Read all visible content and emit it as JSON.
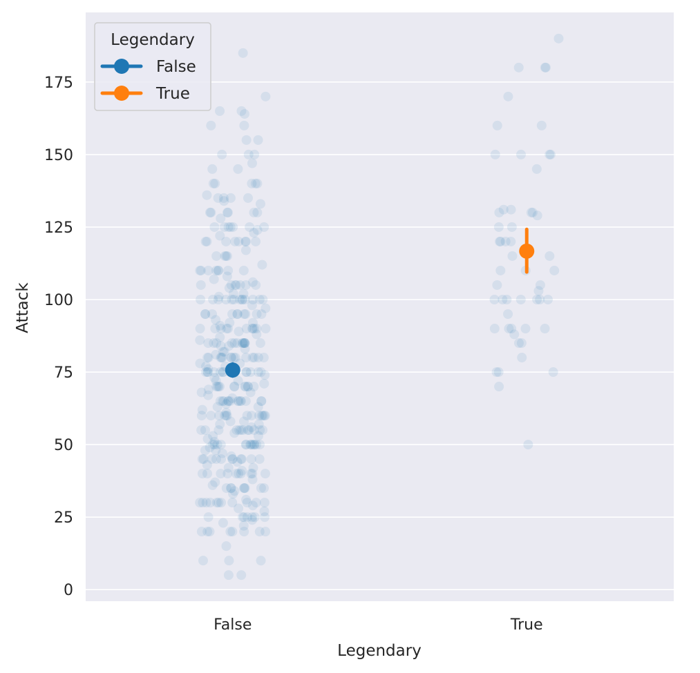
{
  "chart_data": {
    "type": "scatter",
    "title": "",
    "xlabel": "Legendary",
    "ylabel": "Attack",
    "categories": [
      "False",
      "True"
    ],
    "yticks": [
      0,
      25,
      50,
      75,
      100,
      125,
      150,
      175
    ],
    "ylim": [
      -4,
      199
    ],
    "grid": true,
    "legend": {
      "title": "Legendary",
      "placement": "top-left",
      "entries": [
        {
          "label": "False",
          "color": "#1f77b4"
        },
        {
          "label": "True",
          "color": "#ff7f0e"
        }
      ]
    },
    "strip_color": "#1f77b4",
    "series": [
      {
        "name": "False",
        "category": "False",
        "mean": 75.7,
        "ci": [
          73.6,
          77.8
        ],
        "color": "#1f77b4",
        "values": [
          185,
          165,
          165,
          170,
          164,
          160,
          160,
          155,
          155,
          150,
          150,
          150,
          147,
          145,
          145,
          140,
          140,
          140,
          140,
          140,
          136,
          135,
          135,
          135,
          135,
          134,
          133,
          130,
          130,
          130,
          130,
          130,
          130,
          128,
          125,
          125,
          125,
          125,
          125,
          125,
          125,
          124,
          123,
          122,
          120,
          120,
          120,
          120,
          120,
          120,
          120,
          120,
          117,
          115,
          115,
          115,
          115,
          112,
          110,
          110,
          110,
          110,
          110,
          110,
          110,
          110,
          108,
          107,
          106,
          105,
          105,
          105,
          105,
          105,
          105,
          105,
          104,
          102,
          102,
          101,
          100,
          100,
          100,
          100,
          100,
          100,
          100,
          100,
          100,
          100,
          100,
          100,
          100,
          98,
          97,
          95,
          95,
          95,
          95,
          95,
          95,
          95,
          95,
          95,
          95,
          93,
          92,
          92,
          91,
          90,
          90,
          90,
          90,
          90,
          90,
          90,
          90,
          90,
          90,
          90,
          89,
          88,
          87,
          86,
          85,
          85,
          85,
          85,
          85,
          85,
          85,
          85,
          85,
          85,
          85,
          85,
          85,
          84,
          84,
          83,
          82,
          82,
          81,
          80,
          80,
          80,
          80,
          80,
          80,
          80,
          80,
          80,
          80,
          80,
          80,
          80,
          80,
          78,
          78,
          77,
          77,
          76,
          75,
          75,
          75,
          75,
          75,
          75,
          75,
          75,
          75,
          75,
          75,
          75,
          75,
          74,
          73,
          72,
          72,
          71,
          70,
          70,
          70,
          70,
          70,
          70,
          70,
          70,
          70,
          70,
          70,
          69,
          68,
          68,
          67,
          66,
          65,
          65,
          65,
          65,
          65,
          65,
          65,
          65,
          65,
          65,
          65,
          65,
          65,
          64,
          63,
          63,
          62,
          61,
          60,
          60,
          60,
          60,
          60,
          60,
          60,
          60,
          60,
          60,
          60,
          60,
          60,
          58,
          58,
          57,
          57,
          56,
          55,
          55,
          55,
          55,
          55,
          55,
          55,
          55,
          55,
          55,
          55,
          55,
          54,
          53,
          53,
          52,
          51,
          50,
          50,
          50,
          50,
          50,
          50,
          50,
          50,
          50,
          50,
          50,
          50,
          50,
          49,
          48,
          48,
          47,
          46,
          45,
          45,
          45,
          45,
          45,
          45,
          45,
          45,
          45,
          45,
          45,
          44,
          43,
          42,
          42,
          41,
          40,
          40,
          40,
          40,
          40,
          40,
          40,
          40,
          40,
          40,
          38,
          37,
          36,
          35,
          35,
          35,
          35,
          35,
          35,
          35,
          35,
          34,
          33,
          31,
          30,
          30,
          30,
          30,
          30,
          30,
          30,
          30,
          30,
          30,
          30,
          29,
          28,
          27,
          25,
          25,
          25,
          25,
          25,
          25,
          25,
          24,
          23,
          22,
          20,
          20,
          20,
          20,
          20,
          20,
          20,
          20,
          15,
          10,
          10,
          10,
          5,
          5
        ]
      },
      {
        "name": "True",
        "category": "True",
        "mean": 116.7,
        "ci": [
          109.5,
          124.2
        ],
        "color": "#ff7f0e",
        "values": [
          190,
          180,
          180,
          180,
          170,
          160,
          160,
          150,
          150,
          150,
          150,
          145,
          131,
          131,
          130,
          130,
          130,
          129,
          125,
          125,
          120,
          120,
          120,
          120,
          115,
          115,
          110,
          110,
          110,
          105,
          105,
          103,
          100,
          100,
          100,
          100,
          100,
          100,
          100,
          95,
          90,
          90,
          90,
          90,
          90,
          88,
          85,
          85,
          80,
          75,
          75,
          75,
          70,
          50
        ]
      }
    ]
  }
}
